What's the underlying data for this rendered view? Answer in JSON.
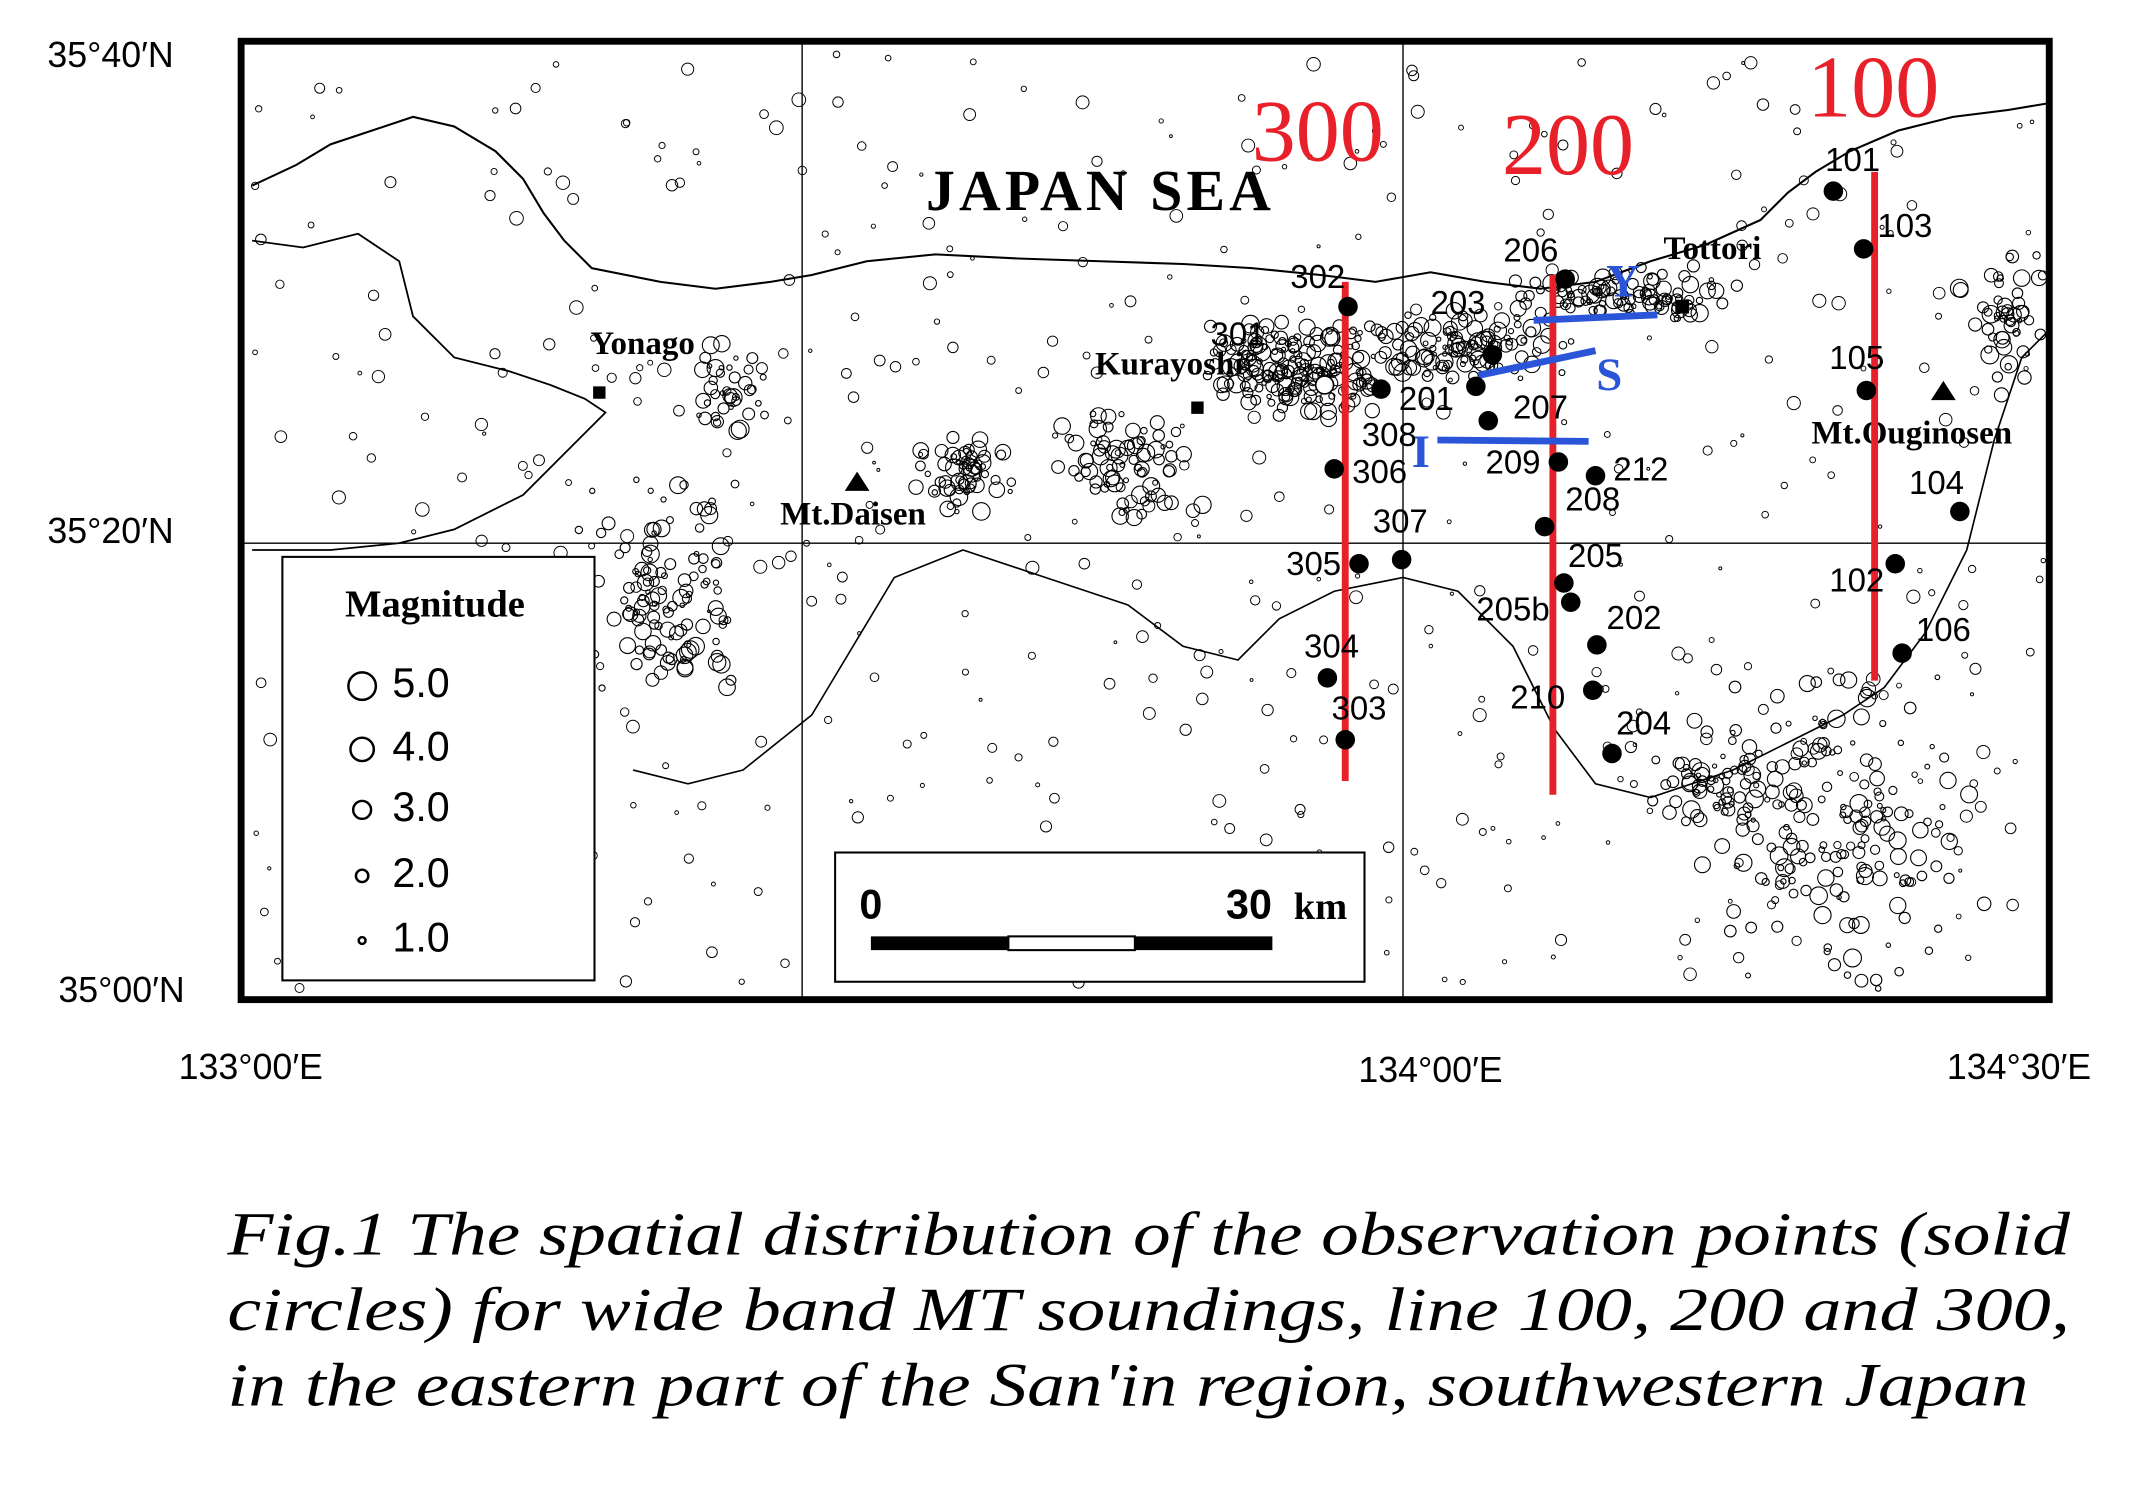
{
  "axes": {
    "lat_labels": [
      "35°40′N",
      "35°20′N",
      "35°00′N"
    ],
    "lon_labels": [
      "133°00′E",
      "134°00′E",
      "134°30′E"
    ]
  },
  "sea_label": "JAPAN SEA",
  "places": [
    "Yonago",
    "Kurayoshi",
    "Tottori",
    "Mt.Daisen",
    "Mt.Ouginosen"
  ],
  "survey_lines": [
    "300",
    "200",
    "100"
  ],
  "profiles": [
    "Y",
    "S",
    "I"
  ],
  "stations": [
    "301",
    "302",
    "303",
    "304",
    "305",
    "306",
    "307",
    "308",
    "201",
    "203",
    "206",
    "207",
    "209",
    "212",
    "208",
    "205",
    "205b",
    "202",
    "210",
    "204",
    "101",
    "103",
    "105",
    "104",
    "102",
    "106"
  ],
  "legend": {
    "title": "Magnitude",
    "items": [
      "5.0",
      "4.0",
      "3.0",
      "2.0",
      "1.0"
    ]
  },
  "scale_bar": {
    "start": "0",
    "end": "30",
    "unit": "km"
  },
  "caption": [
    "Fig.1 The spatial distribution of the observation points (solid",
    "circles) for wide band MT soundings, line 100, 200 and 300,",
    "in the eastern part of the San'in region, southwestern Japan"
  ]
}
